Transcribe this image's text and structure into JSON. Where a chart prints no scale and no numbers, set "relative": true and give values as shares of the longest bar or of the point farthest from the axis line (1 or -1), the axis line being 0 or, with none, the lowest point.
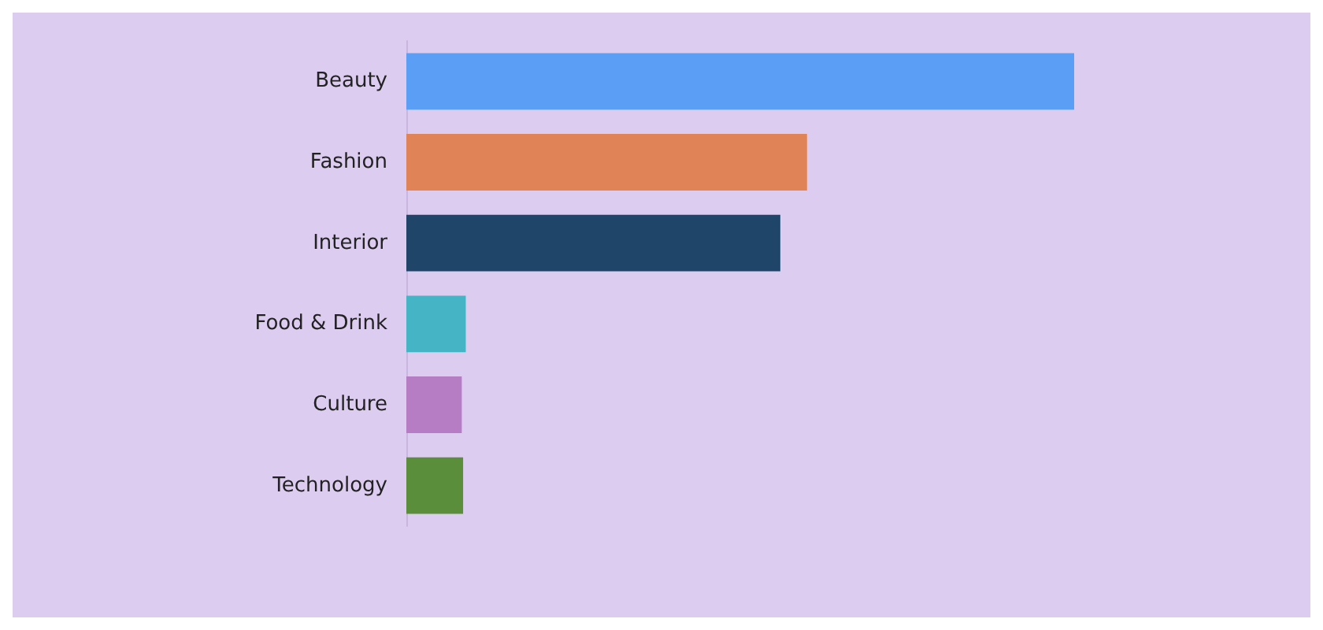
{
  "chart_data": {
    "type": "bar",
    "orientation": "horizontal",
    "relative": true,
    "categories": [
      "Beauty",
      "Fashion",
      "Interior",
      "Food & Drink",
      "Culture",
      "Technology"
    ],
    "values": [
      1,
      0.6,
      0.56,
      0.089,
      0.083,
      0.085
    ],
    "colors": [
      "#5a9ff5",
      "#e08356",
      "#1f4569",
      "#45b5c6",
      "#b67dc5",
      "#5b8e3b"
    ]
  }
}
